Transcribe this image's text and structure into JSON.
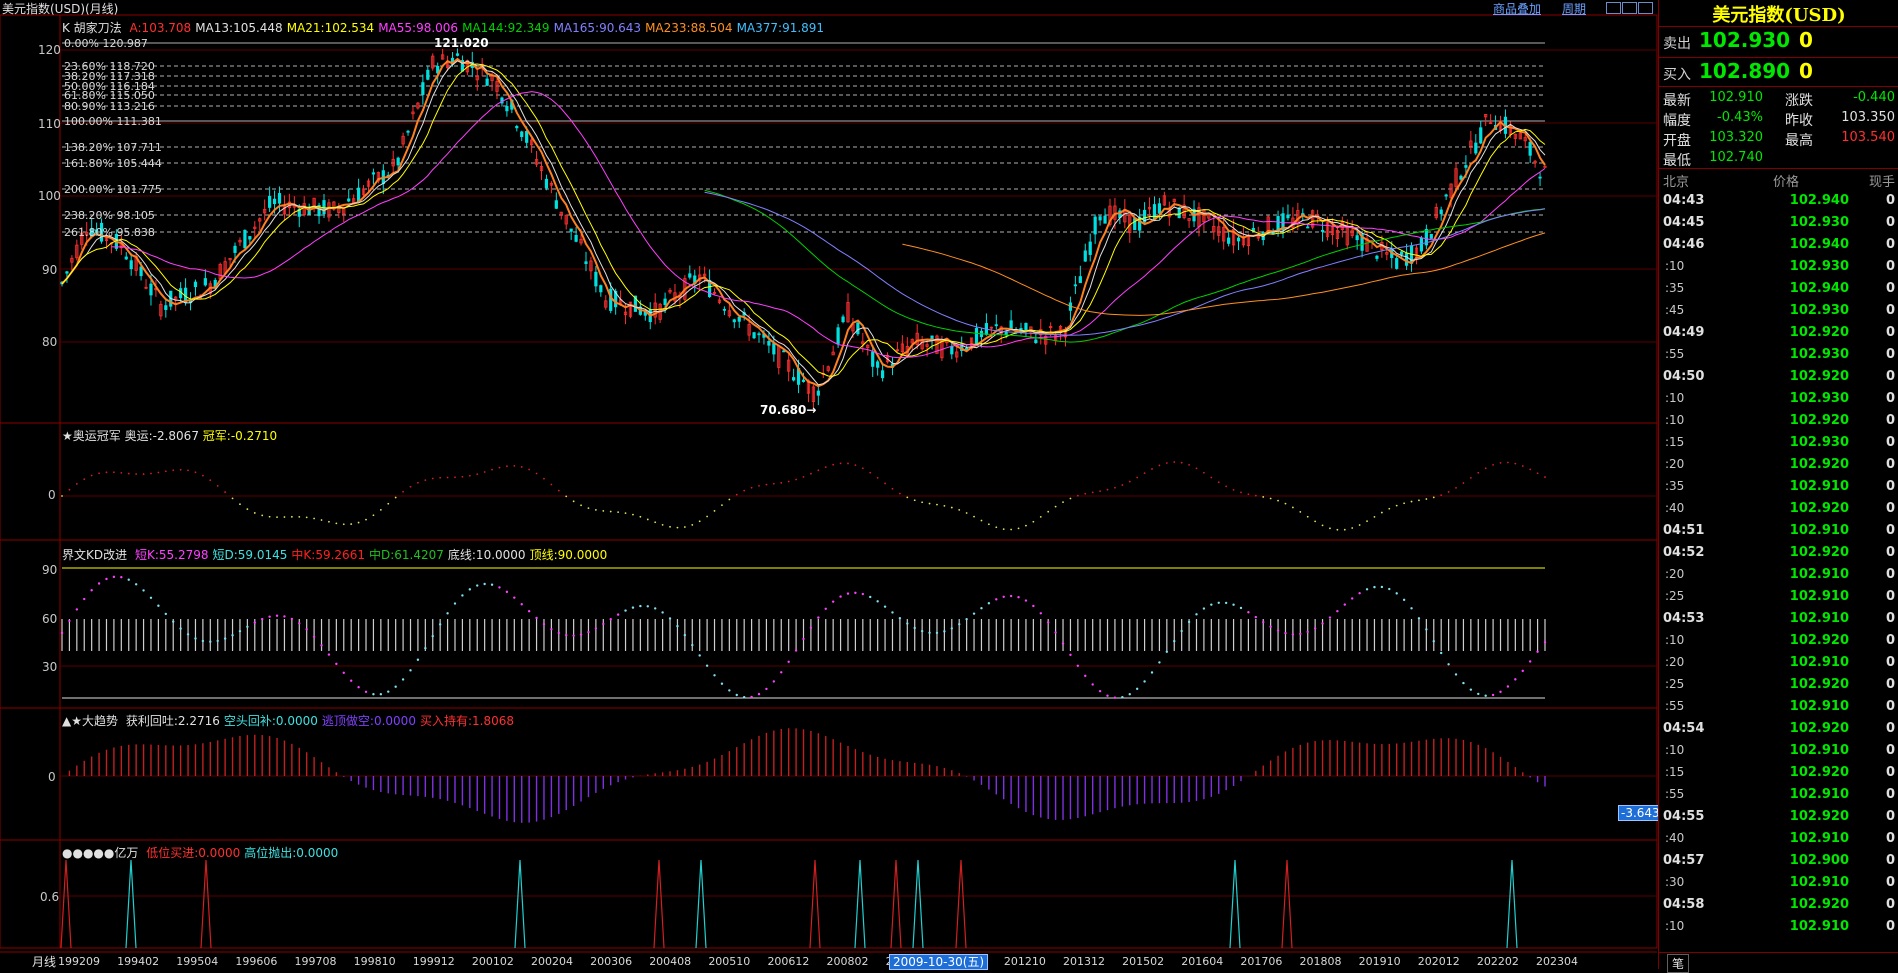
{
  "window": {
    "title": "美元指数(USD)(月线)"
  },
  "top_right": {
    "overlay_label": "商品叠加",
    "period_label": "周期"
  },
  "main_panel": {
    "legend_prefix": "K  胡家刀法",
    "legend": [
      {
        "text": "A:103.708",
        "color": "#ff3030"
      },
      {
        "text": "MA13:105.448",
        "color": "#e0e0e0"
      },
      {
        "text": "MA21:102.534",
        "color": "#ffff00"
      },
      {
        "text": "MA55:98.006",
        "color": "#ff40ff"
      },
      {
        "text": "MA144:92.349",
        "color": "#00d000"
      },
      {
        "text": "MA165:90.643",
        "color": "#8080ff"
      },
      {
        "text": "MA233:88.504",
        "color": "#ff9020"
      },
      {
        "text": "MA377:91.891",
        "color": "#40c0ff"
      }
    ],
    "y_ticks": [
      "120",
      "110",
      "100",
      "90",
      "80"
    ],
    "fib_levels": [
      "0.00% 120.987",
      "23.60% 118.720",
      "38.20% 117.318",
      "50.00% 116.184",
      "61.80% 115.050",
      "80.90% 113.216",
      "100.00% 111.381",
      "138.20% 107.711",
      "161.80% 105.444",
      "200.00% 101.775",
      "238.20% 98.105",
      "261.80% 95.838"
    ],
    "high_label": "121.020",
    "low_label": "70.680"
  },
  "panel2": {
    "title": "★奥运冠军",
    "v1": "奥运:-2.8067",
    "v2": "冠军:-0.2710",
    "y_tick": "0"
  },
  "panel3": {
    "title": "界文KD改进",
    "vals": [
      {
        "text": "短K:55.2798",
        "color": "#ff40ff"
      },
      {
        "text": "短D:59.0145",
        "color": "#40e0e0"
      },
      {
        "text": "中K:59.2661",
        "color": "#ff2020"
      },
      {
        "text": "中D:61.4207",
        "color": "#20c020"
      },
      {
        "text": "底线:10.0000",
        "color": "#e0e0e0"
      },
      {
        "text": "顶线:90.0000",
        "color": "#ffff00"
      }
    ],
    "y_ticks": [
      "90",
      "60",
      "30"
    ]
  },
  "panel4": {
    "title": "▲★大趋势",
    "vals": [
      {
        "text": "获利回吐:2.2716",
        "color": "#e0e0e0"
      },
      {
        "text": "空头回补:0.0000",
        "color": "#40e0e0"
      },
      {
        "text": "逃顶做空:0.0000",
        "color": "#8040ff"
      },
      {
        "text": "买入持有:1.8068",
        "color": "#ff3030"
      }
    ],
    "y_tick": "0",
    "side_value": "-3.643"
  },
  "panel5": {
    "title": "●●●●●亿万",
    "vals": [
      {
        "text": "低位买进:0.0000",
        "color": "#ff3030"
      },
      {
        "text": "高位抛出:0.0000",
        "color": "#40e0e0"
      }
    ],
    "y_tick": "0.6"
  },
  "x_axis": {
    "period_label": "月线",
    "labels": [
      "199209",
      "199402",
      "199504",
      "199606",
      "199708",
      "199810",
      "199912",
      "200102",
      "200204",
      "200306",
      "200408",
      "200510",
      "200612",
      "200802",
      "200904",
      "08",
      "201210",
      "201312",
      "201502",
      "201604",
      "201706",
      "201808",
      "201910",
      "202012",
      "202202",
      "202304"
    ],
    "highlight": "2009-10-30(五)"
  },
  "quote": {
    "title": "美元指数(USD)",
    "sell_label": "卖出",
    "sell_price": "102.930",
    "sell_vol": "0",
    "buy_label": "买入",
    "buy_price": "102.890",
    "buy_vol": "0",
    "stats": [
      {
        "l1": "最新",
        "v1": "102.910",
        "c1": "#00e800",
        "l2": "涨跌",
        "v2": "-0.440",
        "c2": "#00e800"
      },
      {
        "l1": "幅度",
        "v1": "-0.43%",
        "c1": "#00e800",
        "l2": "昨收",
        "v2": "103.350",
        "c2": "#e0e0e0"
      },
      {
        "l1": "开盘",
        "v1": "103.320",
        "c1": "#00e800",
        "l2": "最高",
        "v2": "103.540",
        "c2": "#ff3030"
      },
      {
        "l1": "最低",
        "v1": "102.740",
        "c1": "#00e800",
        "l2": "",
        "v2": "",
        "c2": "#e0e0e0"
      }
    ],
    "tick_headers": [
      "北京",
      "价格",
      "现手"
    ],
    "ticks": [
      {
        "time": "04:43",
        "major": true,
        "price": "102.940",
        "vol": "0"
      },
      {
        "time": "04:45",
        "major": true,
        "price": "102.930",
        "vol": "0"
      },
      {
        "time": "04:46",
        "major": true,
        "price": "102.940",
        "vol": "0"
      },
      {
        "time": ":10",
        "major": false,
        "price": "102.930",
        "vol": "0"
      },
      {
        "time": ":35",
        "major": false,
        "price": "102.940",
        "vol": "0"
      },
      {
        "time": ":45",
        "major": false,
        "price": "102.930",
        "vol": "0"
      },
      {
        "time": "04:49",
        "major": true,
        "price": "102.920",
        "vol": "0"
      },
      {
        "time": ":55",
        "major": false,
        "price": "102.930",
        "vol": "0"
      },
      {
        "time": "04:50",
        "major": true,
        "price": "102.920",
        "vol": "0"
      },
      {
        "time": ":10",
        "major": false,
        "price": "102.930",
        "vol": "0"
      },
      {
        "time": ":10",
        "major": false,
        "price": "102.920",
        "vol": "0"
      },
      {
        "time": ":15",
        "major": false,
        "price": "102.930",
        "vol": "0"
      },
      {
        "time": ":20",
        "major": false,
        "price": "102.920",
        "vol": "0"
      },
      {
        "time": ":35",
        "major": false,
        "price": "102.910",
        "vol": "0"
      },
      {
        "time": ":40",
        "major": false,
        "price": "102.920",
        "vol": "0"
      },
      {
        "time": "04:51",
        "major": true,
        "price": "102.910",
        "vol": "0"
      },
      {
        "time": "04:52",
        "major": true,
        "price": "102.920",
        "vol": "0"
      },
      {
        "time": ":20",
        "major": false,
        "price": "102.910",
        "vol": "0"
      },
      {
        "time": ":25",
        "major": false,
        "price": "102.910",
        "vol": "0"
      },
      {
        "time": "04:53",
        "major": true,
        "price": "102.910",
        "vol": "0"
      },
      {
        "time": ":10",
        "major": false,
        "price": "102.920",
        "vol": "0"
      },
      {
        "time": ":20",
        "major": false,
        "price": "102.910",
        "vol": "0"
      },
      {
        "time": ":25",
        "major": false,
        "price": "102.920",
        "vol": "0"
      },
      {
        "time": ":55",
        "major": false,
        "price": "102.910",
        "vol": "0"
      },
      {
        "time": "04:54",
        "major": true,
        "price": "102.920",
        "vol": "0"
      },
      {
        "time": ":10",
        "major": false,
        "price": "102.910",
        "vol": "0"
      },
      {
        "time": ":15",
        "major": false,
        "price": "102.920",
        "vol": "0"
      },
      {
        "time": ":55",
        "major": false,
        "price": "102.910",
        "vol": "0"
      },
      {
        "time": "04:55",
        "major": true,
        "price": "102.920",
        "vol": "0"
      },
      {
        "time": ":40",
        "major": false,
        "price": "102.910",
        "vol": "0"
      },
      {
        "time": "04:57",
        "major": true,
        "price": "102.900",
        "vol": "0"
      },
      {
        "time": ":30",
        "major": false,
        "price": "102.910",
        "vol": "0"
      },
      {
        "time": "04:58",
        "major": true,
        "price": "102.920",
        "vol": "0"
      },
      {
        "time": ":10",
        "major": false,
        "price": "102.910",
        "vol": "0"
      }
    ],
    "bottom_tab": "笔"
  }
}
